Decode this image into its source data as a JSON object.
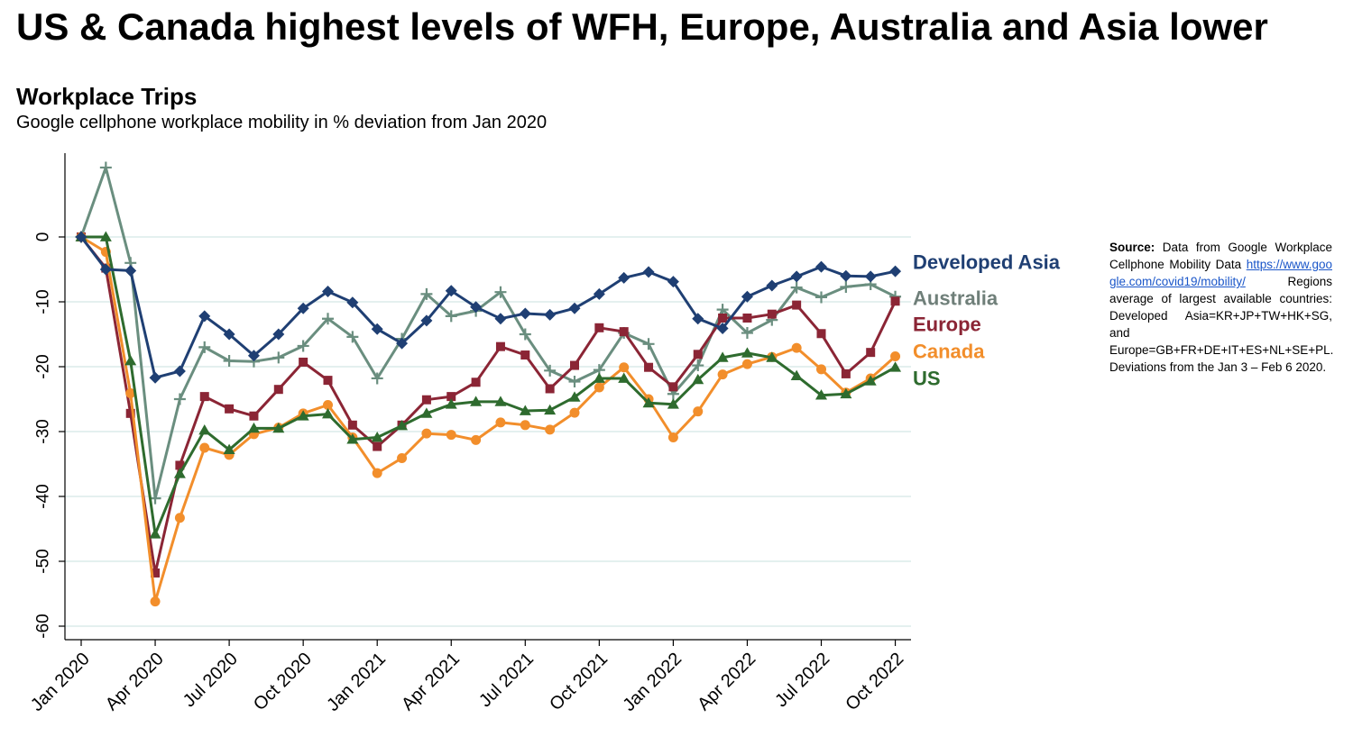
{
  "headline": "US & Canada highest levels of WFH, Europe, Australia and Asia lower",
  "chart_data": {
    "type": "line",
    "title": "Workplace Trips",
    "subtitle": "Google cellphone workplace mobility in % deviation from Jan 2020",
    "xlabel": "",
    "ylabel": "",
    "ylim": [
      -62,
      12
    ],
    "yticks": [
      0,
      -10,
      -20,
      -30,
      -40,
      -50,
      -60
    ],
    "ytick_labels": [
      "0",
      "-10",
      "-20",
      "-30",
      "-40",
      "-50",
      "-60"
    ],
    "x_tick_labels": [
      "Jan 2020",
      "Apr 2020",
      "Jul 2020",
      "Oct 2020",
      "Jan 2021",
      "Apr 2021",
      "Jul 2021",
      "Oct 2021",
      "Jan 2022",
      "Apr 2022",
      "Jul 2022",
      "Oct 2022"
    ],
    "x_tick_index": [
      0,
      3,
      6,
      9,
      12,
      15,
      18,
      21,
      24,
      27,
      30,
      33
    ],
    "grid": true,
    "legend_placement": "right (labels at line ends)",
    "series": [
      {
        "name": "Developed Asia",
        "color": "#1f3f73",
        "marker": "diamond",
        "values": [
          0,
          -5,
          -5.2,
          -21.7,
          -20.7,
          -12.2,
          -15,
          -18.3,
          -15,
          -11,
          -8.4,
          -10.1,
          -14.2,
          -16.4,
          -12.9,
          -8.3,
          -10.8,
          -12.6,
          -11.8,
          -12,
          -11,
          -8.8,
          -6.3,
          -5.4,
          -6.9,
          -12.6,
          -14.1,
          -9.2,
          -7.5,
          -6.1,
          -4.6,
          -6,
          -6.1,
          -5.3
        ]
      },
      {
        "name": "Australia",
        "color": "#6a8e7f",
        "marker": "plus",
        "values": [
          0,
          10.7,
          -4,
          -40.3,
          -25,
          -17,
          -19.1,
          -19.2,
          -18.6,
          -16.8,
          -12.6,
          -15.4,
          -21.8,
          -15.7,
          -8.8,
          -12.2,
          -11.4,
          -8.5,
          -15,
          -20.6,
          -22.3,
          -20.5,
          -14.8,
          -16.5,
          -24.2,
          -19.8,
          -11.2,
          -14.8,
          -12.8,
          -7.8,
          -9.3,
          -7.7,
          -7.3,
          -9.2
        ]
      },
      {
        "name": "Europe",
        "color": "#8b2535",
        "marker": "square",
        "values": [
          0,
          -4.8,
          -27.2,
          -51.8,
          -35.2,
          -24.6,
          -26.5,
          -27.6,
          -23.5,
          -19.3,
          -22.1,
          -29,
          -32.3,
          -29,
          -25.1,
          -24.6,
          -22.4,
          -16.9,
          -18.2,
          -23.4,
          -19.8,
          -14,
          -14.6,
          -20.1,
          -23.1,
          -18.1,
          -12.5,
          -12.5,
          -11.9,
          -10.5,
          -14.9,
          -21.1,
          -17.8,
          -9.9
        ]
      },
      {
        "name": "Canada",
        "color": "#f28e2b",
        "marker": "circle",
        "values": [
          0,
          -2.3,
          -24.1,
          -56.2,
          -43.3,
          -32.5,
          -33.6,
          -30.4,
          -29.4,
          -27.2,
          -25.9,
          -30.9,
          -36.4,
          -34.1,
          -30.3,
          -30.5,
          -31.3,
          -28.6,
          -29,
          -29.7,
          -27.1,
          -23.2,
          -20.1,
          -25,
          -30.9,
          -26.9,
          -21.2,
          -19.6,
          -18.5,
          -17.1,
          -20.4,
          -24,
          -21.8,
          -18.4
        ]
      },
      {
        "name": "US",
        "color": "#2e6b2e",
        "marker": "triangle",
        "values": [
          0,
          0,
          -19.1,
          -45.8,
          -36.5,
          -29.8,
          -32.8,
          -29.5,
          -29.5,
          -27.6,
          -27.3,
          -31.2,
          -30.9,
          -29.1,
          -27.2,
          -25.8,
          -25.4,
          -25.4,
          -26.8,
          -26.7,
          -24.7,
          -21.8,
          -21.8,
          -25.6,
          -25.8,
          -22,
          -18.6,
          -17.9,
          -18.6,
          -21.4,
          -24.4,
          -24.2,
          -22.2,
          -20.1
        ]
      }
    ]
  },
  "source": {
    "label": "Source:",
    "text_before_link": " Data from Google Workplace Cellphone Mobility Data ",
    "link": "https://www.google.com/covid19/mobility/",
    "text_after_link": " Regions average of largest available countries: Developed Asia=KR+JP+TW+HK+SG, and Europe=GB+FR+DE+IT+ES+NL+SE+PL. Deviations from the Jan 3 – Feb 6 2020."
  }
}
